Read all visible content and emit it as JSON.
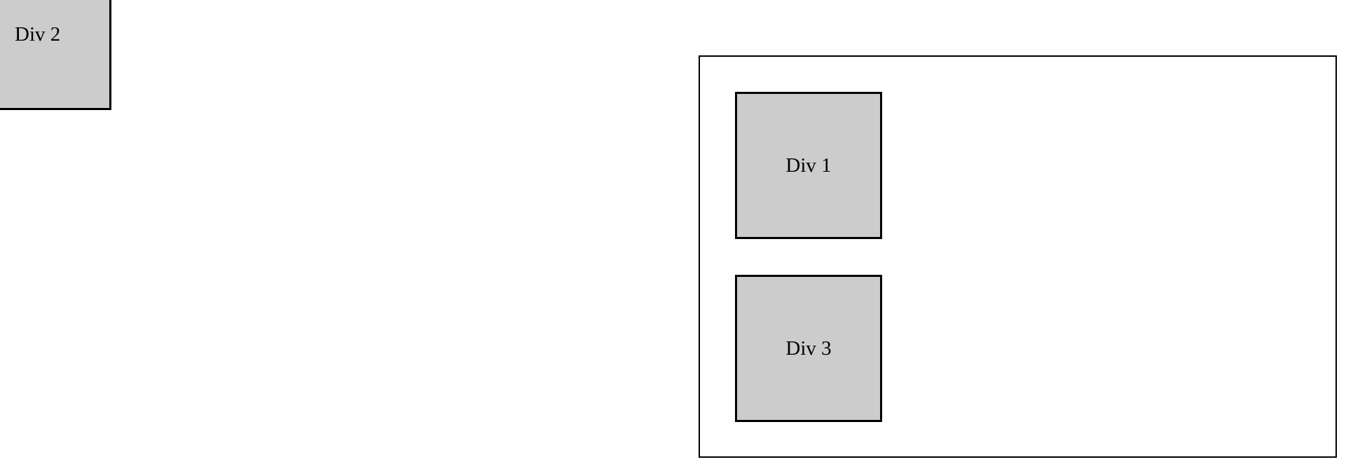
{
  "boxes": {
    "div1": {
      "label": "Div 1"
    },
    "div2": {
      "label": "Div 2"
    },
    "div3": {
      "label": "Div 3"
    }
  },
  "colors": {
    "box_fill": "#cccccc",
    "border": "#000000",
    "background": "#ffffff"
  }
}
